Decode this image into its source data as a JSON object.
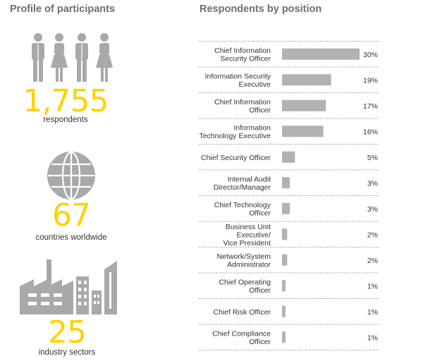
{
  "left": {
    "title": "Profile of participants",
    "respondents_number": "1,755",
    "respondents_label": "respondents",
    "countries_number": "67",
    "countries_label": "countries worldwide",
    "sectors_number": "25",
    "sectors_label": "industry sectors"
  },
  "colors": {
    "accent": "#ffd200",
    "icon": "#a7a9ac",
    "bar": "#b2b2b2",
    "title": "#6d6e70"
  },
  "chart_data": {
    "type": "bar",
    "orientation": "horizontal",
    "title": "Respondents by position",
    "categories": [
      [
        "Chief Information",
        "Security Officer"
      ],
      [
        "Information Security",
        "Executive"
      ],
      [
        "Chief Information",
        "Officer"
      ],
      [
        "Information",
        "Technology Executive"
      ],
      [
        "Chief Security Officer"
      ],
      [
        "Internal Audit",
        "Director/Manager"
      ],
      [
        "Chief Technology",
        "Officer"
      ],
      [
        "Business Unit",
        "Executive/",
        "Vice President"
      ],
      [
        "Network/System",
        "Administrator"
      ],
      [
        "Chief Operating",
        "Officer"
      ],
      [
        "Chief Risk Officer"
      ],
      [
        "Chief Compliance",
        "Officer"
      ]
    ],
    "values": [
      30,
      19,
      17,
      16,
      5,
      3,
      3,
      2,
      2,
      1,
      1,
      1
    ],
    "value_labels": [
      "30%",
      "19%",
      "17%",
      "16%",
      "5%",
      "3%",
      "3%",
      "2%",
      "2%",
      "1%",
      "1%",
      "1%"
    ],
    "xlim": [
      0,
      30
    ],
    "unit": "%"
  }
}
